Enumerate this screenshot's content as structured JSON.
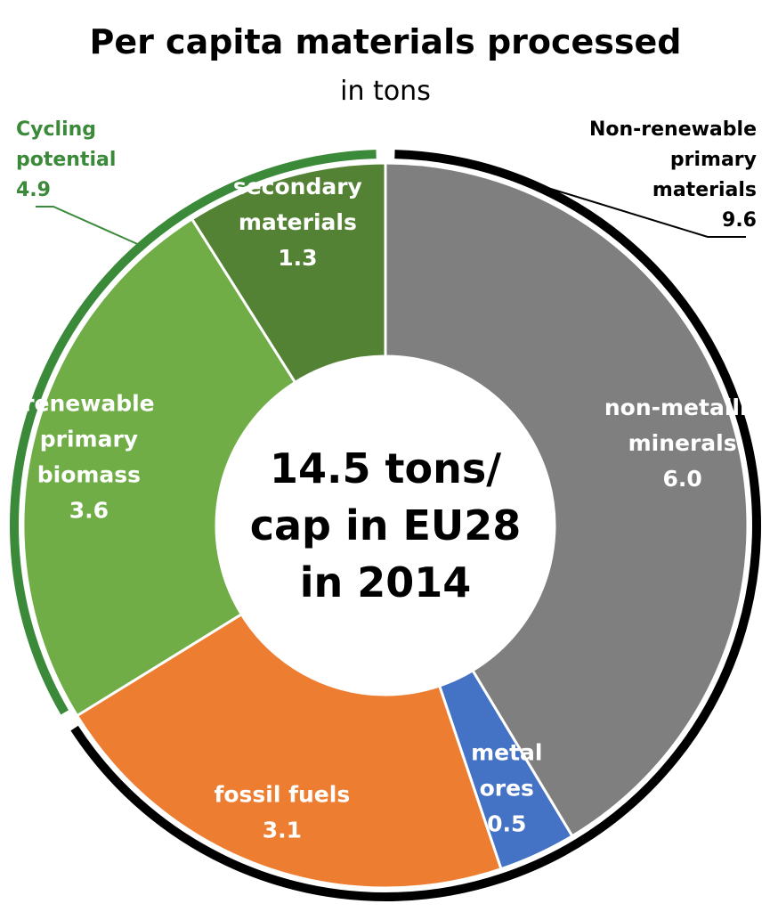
{
  "chart_data": {
    "type": "pie",
    "title": "Per capita materials processed",
    "subtitle": "in tons",
    "center_text": [
      "14.5 tons/",
      "cap in EU28",
      "in 2014"
    ],
    "total": 14.5,
    "donut": true,
    "slices": [
      {
        "label": [
          "non-metallic",
          "minerals"
        ],
        "value": 6.0,
        "value_text": "6.0",
        "color": "#7f7f7f"
      },
      {
        "label": [
          "metal",
          "ores"
        ],
        "value": 0.5,
        "value_text": "0.5",
        "color": "#4472c4"
      },
      {
        "label": [
          "fossil fuels"
        ],
        "value": 3.1,
        "value_text": "3.1",
        "color": "#ed7d31"
      },
      {
        "label": [
          "renewable",
          "primary",
          "biomass"
        ],
        "value": 3.6,
        "value_text": "3.6",
        "color": "#70ad47"
      },
      {
        "label": [
          "secondary",
          "materials"
        ],
        "value": 1.3,
        "value_text": "1.3",
        "color": "#548235"
      }
    ],
    "groups": [
      {
        "label": [
          "Non-renewable",
          "primary",
          "materials"
        ],
        "value_text": "9.6",
        "color": "#000000",
        "members": [
          "non-metallic minerals",
          "metal ores",
          "fossil fuels"
        ],
        "label_position": "top-right"
      },
      {
        "label": [
          "Cycling",
          "potential"
        ],
        "value_text": "4.9",
        "color": "#3a8a3a",
        "members": [
          "renewable primary biomass",
          "secondary materials"
        ],
        "label_position": "top-left"
      }
    ]
  }
}
